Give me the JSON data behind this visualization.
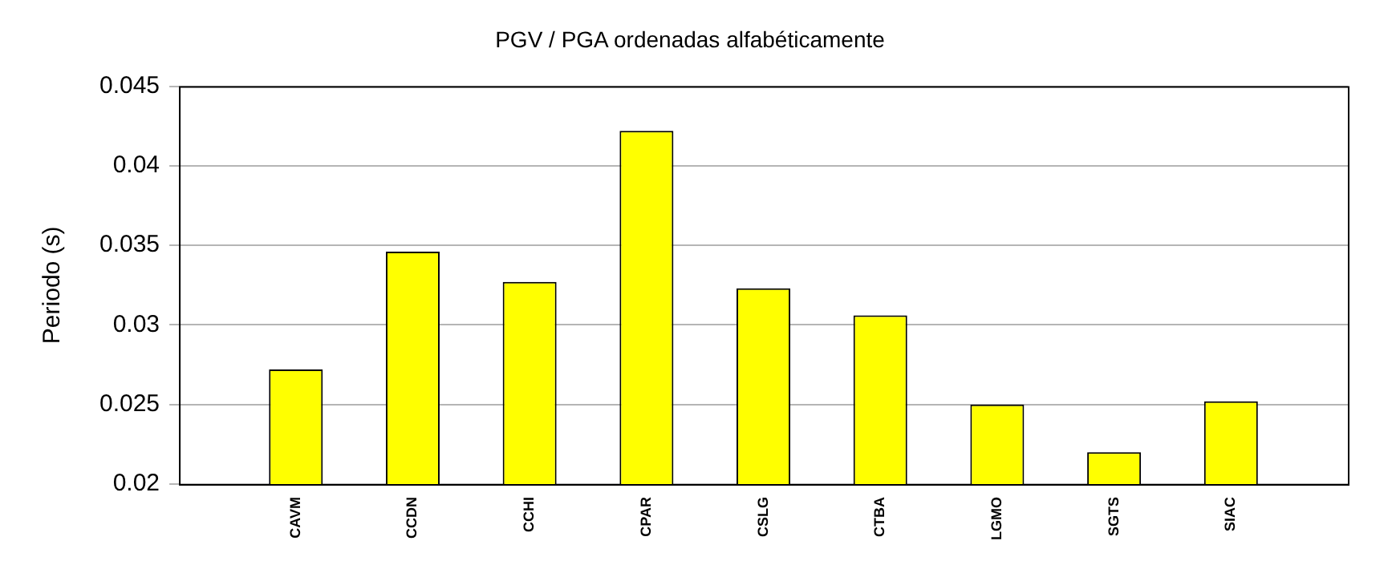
{
  "chart_data": {
    "type": "bar",
    "title": "PGV / PGA ordenadas alfabéticamente",
    "ylabel": "Periodo (s)",
    "categories": [
      "CAVM",
      "CCDN",
      "CCHI",
      "CPAR",
      "CSLG",
      "CTBA",
      "LGMO",
      "SGTS",
      "SIAC"
    ],
    "values": [
      0.0272,
      0.0346,
      0.0327,
      0.0422,
      0.0323,
      0.0306,
      0.025,
      0.022,
      0.0252
    ],
    "color": "#ffff00",
    "ylim": [
      0.02,
      0.045
    ],
    "yticks": [
      0.02,
      0.025,
      0.03,
      0.035,
      0.04,
      0.045
    ],
    "grid": "y",
    "legend": false
  }
}
